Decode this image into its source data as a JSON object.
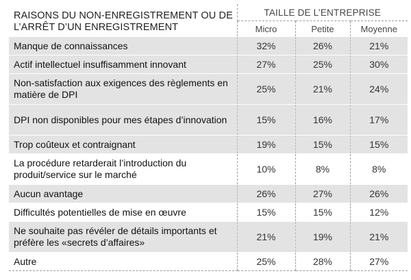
{
  "header": {
    "reason_title": "RAISONS DU NON-ENREGISTREMENT OU DE L’ARRÊT D’UN ENREGISTREMENT",
    "group_title": "TAILLE DE L’ENTREPRISE",
    "columns": [
      "Micro",
      "Petite",
      "Moyenne"
    ]
  },
  "rows": [
    {
      "reason": "Manque de connaissances",
      "micro": "32%",
      "petite": "26%",
      "moyenne": "21%"
    },
    {
      "reason": "Actif intellectuel insuffisamment innovant",
      "micro": "27%",
      "petite": "25%",
      "moyenne": "30%"
    },
    {
      "reason": "Non-satisfaction aux exigences des règlements en matière de DPI",
      "micro": "25%",
      "petite": "21%",
      "moyenne": "24%"
    },
    {
      "reason": "DPI non disponibles pour mes étapes d’innovation",
      "micro": "15%",
      "petite": "16%",
      "moyenne": "17%"
    },
    {
      "reason": "Trop coûteux et contraignant",
      "micro": "19%",
      "petite": "15%",
      "moyenne": "15%"
    },
    {
      "reason": "La procédure retarderait l’introduction du produit/service sur le marché",
      "micro": "10%",
      "petite": "8%",
      "moyenne": "8%"
    },
    {
      "reason": "Aucun avantage",
      "micro": "26%",
      "petite": "27%",
      "moyenne": "26%"
    },
    {
      "reason": "Difficultés potentielles de mise en œuvre",
      "micro": "15%",
      "petite": "15%",
      "moyenne": "12%"
    },
    {
      "reason": "Ne souhaite pas révéler de détails importants et préfère les «secrets d’affaires»",
      "micro": "21%",
      "petite": "19%",
      "moyenne": "21%"
    },
    {
      "reason": "Autre",
      "micro": "25%",
      "petite": "28%",
      "moyenne": "27%"
    }
  ]
}
